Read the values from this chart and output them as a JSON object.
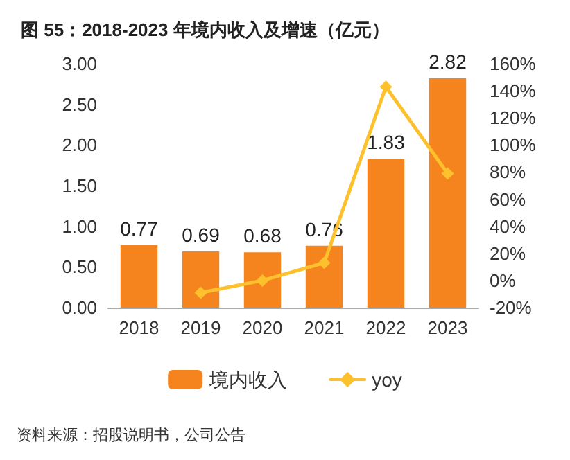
{
  "chart_data": {
    "type": "bar",
    "title": "图 55：2018-2023 年境内收入及增速（亿元）",
    "categories": [
      "2018",
      "2019",
      "2020",
      "2021",
      "2022",
      "2023"
    ],
    "series": [
      {
        "name": "境内收入",
        "color": "#f5841f",
        "values": [
          0.77,
          0.69,
          0.68,
          0.76,
          1.83,
          2.82
        ],
        "data_labels": true
      },
      {
        "name": "yoy",
        "type": "line",
        "axis": "y2",
        "color": "#fdc12e",
        "values": [
          null,
          -9,
          0,
          13,
          143,
          79
        ],
        "marker": "diamond"
      }
    ],
    "ylim": [
      0,
      3
    ],
    "yticks": [
      {
        "value": 0,
        "label": "0.00"
      },
      {
        "value": 0.5,
        "label": "0.50"
      },
      {
        "value": 1,
        "label": "1.00"
      },
      {
        "value": 1.5,
        "label": "1.50"
      },
      {
        "value": 2,
        "label": "2.00"
      },
      {
        "value": 2.5,
        "label": "2.50"
      },
      {
        "value": 3,
        "label": "3.00"
      }
    ],
    "y2lim": [
      -20,
      160
    ],
    "y2ticks": [
      {
        "value": -20,
        "label": "-20%"
      },
      {
        "value": 0,
        "label": "0%"
      },
      {
        "value": 20,
        "label": "20%"
      },
      {
        "value": 40,
        "label": "40%"
      },
      {
        "value": 60,
        "label": "60%"
      },
      {
        "value": 80,
        "label": "80%"
      },
      {
        "value": 100,
        "label": "100%"
      },
      {
        "value": 120,
        "label": "120%"
      },
      {
        "value": 140,
        "label": "140%"
      },
      {
        "value": 160,
        "label": "160%"
      }
    ],
    "legend": "bottom",
    "annotations": [
      "资料来源：招股说明书，公司公告"
    ]
  }
}
